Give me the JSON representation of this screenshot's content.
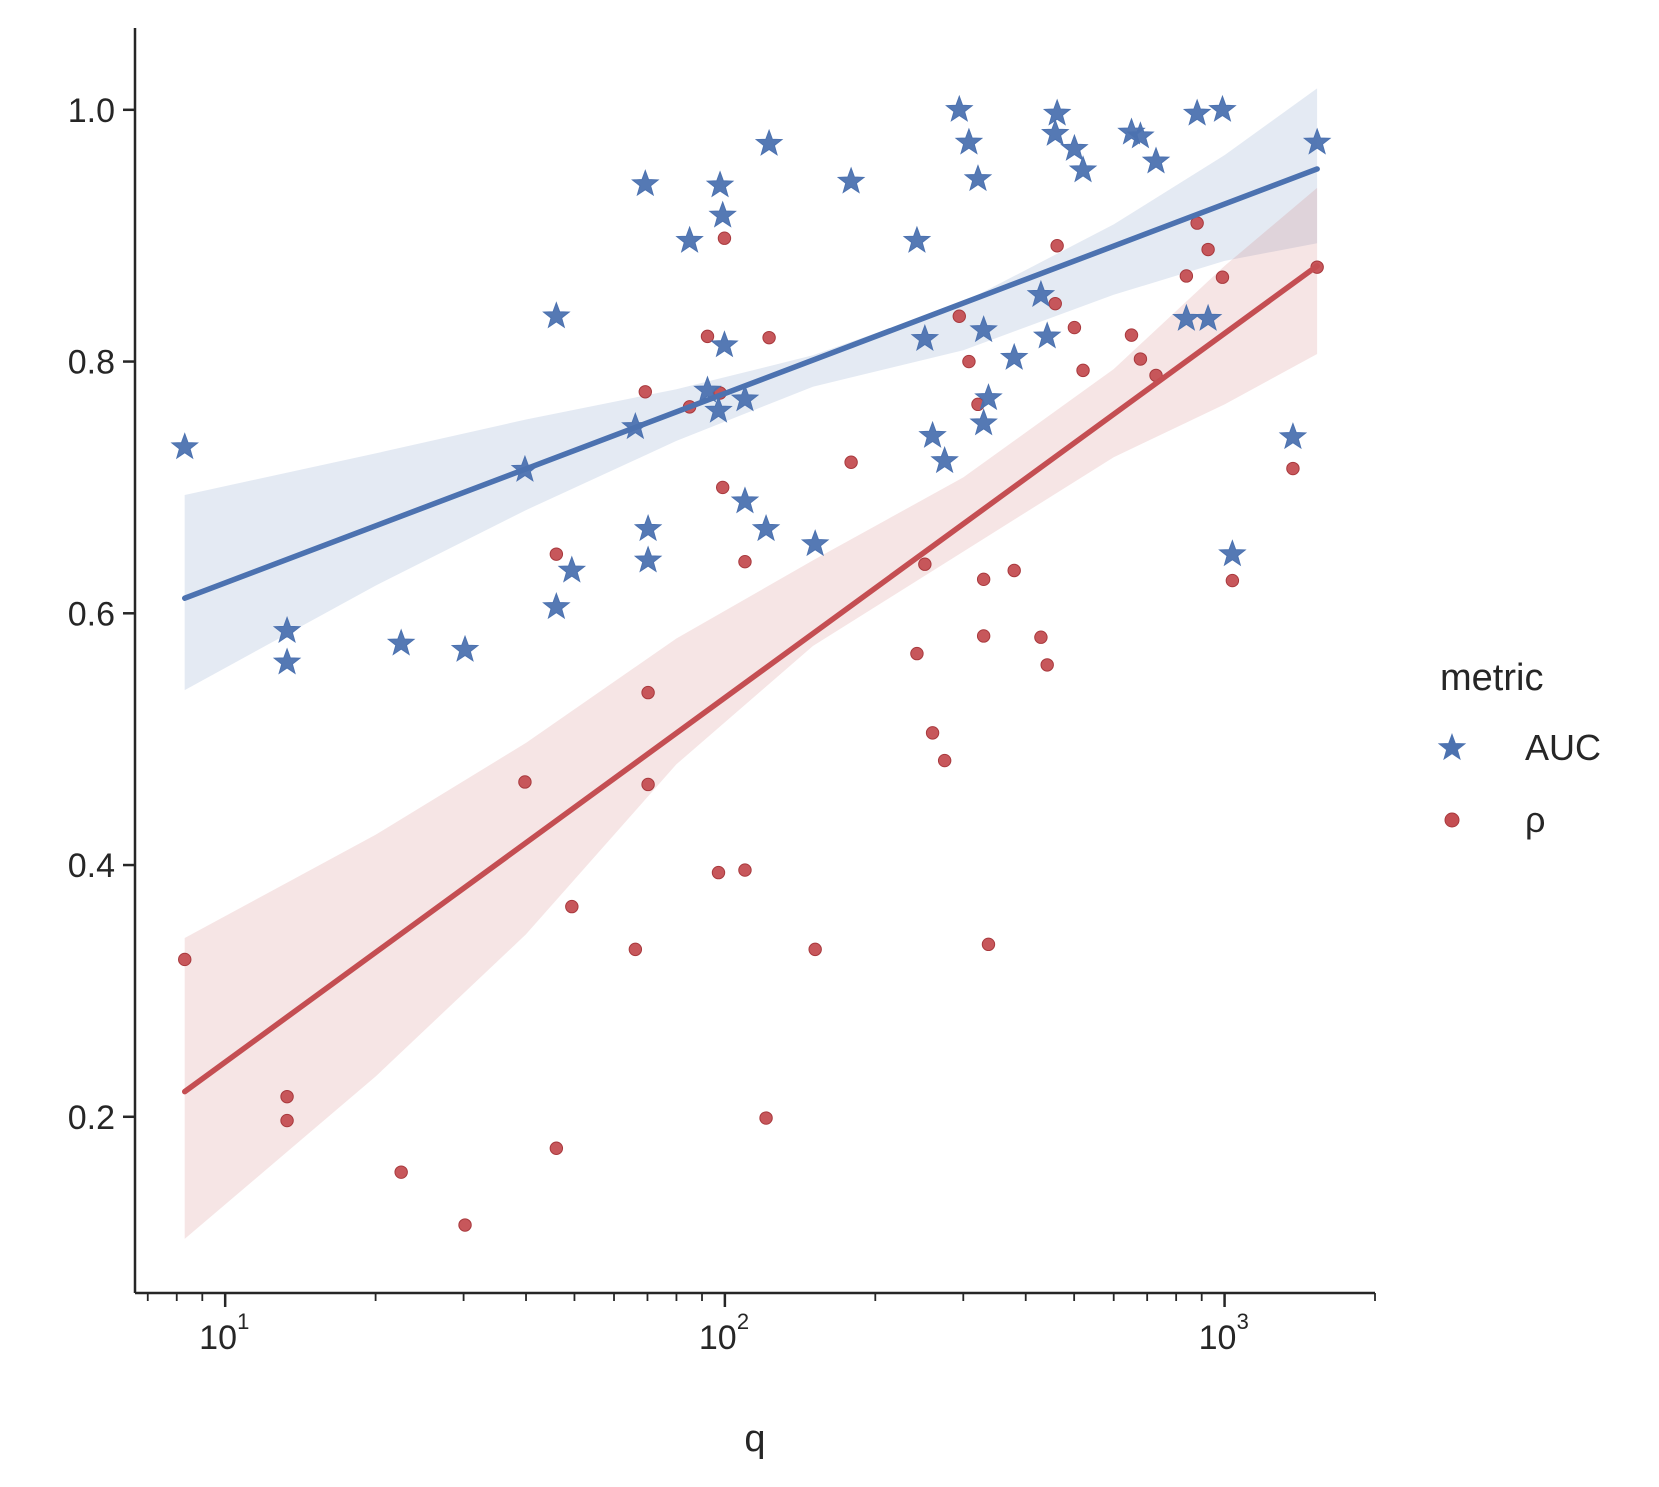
{
  "chart_data": {
    "type": "scatter",
    "title": "",
    "xlabel": "q",
    "ylabel": "",
    "xscale": "log",
    "xlim": [
      6.6,
      2000
    ],
    "ylim": [
      0.06,
      1.065
    ],
    "yticks": [
      {
        "value": 0.2,
        "label": "0.2"
      },
      {
        "value": 0.4,
        "label": "0.4"
      },
      {
        "value": 0.6,
        "label": "0.6"
      },
      {
        "value": 0.8,
        "label": "0.8"
      },
      {
        "value": 1.0,
        "label": "1.0"
      }
    ],
    "xticks": [
      {
        "value": 10,
        "base": "10",
        "exp": "1"
      },
      {
        "value": 100,
        "base": "10",
        "exp": "2"
      },
      {
        "value": 1000,
        "base": "10",
        "exp": "3"
      }
    ],
    "legend": {
      "title": "metric",
      "position": "right"
    },
    "series": [
      {
        "name": "AUC",
        "marker": "star",
        "color": "#4C72B0",
        "points": [
          [
            8.3,
            0.732
          ],
          [
            13.3,
            0.586
          ],
          [
            13.3,
            0.561
          ],
          [
            22.5,
            0.576
          ],
          [
            30.2,
            0.571
          ],
          [
            39.8,
            0.714
          ],
          [
            46.0,
            0.836
          ],
          [
            46.0,
            0.605
          ],
          [
            49.4,
            0.634
          ],
          [
            66.2,
            0.748
          ],
          [
            69.3,
            0.941
          ],
          [
            70.2,
            0.667
          ],
          [
            70.2,
            0.642
          ],
          [
            85.0,
            0.896
          ],
          [
            92.3,
            0.777
          ],
          [
            97.1,
            0.761
          ],
          [
            97.8,
            0.94
          ],
          [
            99.0,
            0.916
          ],
          [
            99.8,
            0.813
          ],
          [
            109.7,
            0.689
          ],
          [
            109.7,
            0.77
          ],
          [
            120.9,
            0.667
          ],
          [
            122.6,
            0.973
          ],
          [
            151.6,
            0.655
          ],
          [
            178.9,
            0.943
          ],
          [
            242.3,
            0.896
          ],
          [
            251.3,
            0.818
          ],
          [
            260.4,
            0.741
          ],
          [
            275.3,
            0.721
          ],
          [
            294.5,
            1.0
          ],
          [
            307.9,
            0.974
          ],
          [
            321.0,
            0.945
          ],
          [
            329.5,
            0.825
          ],
          [
            329.5,
            0.751
          ],
          [
            336.9,
            0.771
          ],
          [
            379.3,
            0.803
          ],
          [
            429.0,
            0.853
          ],
          [
            441.6,
            0.82
          ],
          [
            458.3,
            0.981
          ],
          [
            462.3,
            0.997
          ],
          [
            500.6,
            0.969
          ],
          [
            520.9,
            0.952
          ],
          [
            651.2,
            0.982
          ],
          [
            678.6,
            0.979
          ],
          [
            729.1,
            0.959
          ],
          [
            838.6,
            0.834
          ],
          [
            881.2,
            0.997
          ],
          [
            926.9,
            0.834
          ],
          [
            990.3,
            1.0
          ],
          [
            1036.6,
            0.647
          ],
          [
            1370.2,
            0.74
          ],
          [
            1532.0,
            0.974
          ]
        ],
        "fit": {
          "x": [
            8.3,
            1532.0
          ],
          "y": [
            0.612,
            0.953
          ]
        },
        "ci_upper": [
          [
            8.3,
            0.694
          ],
          [
            20,
            0.727
          ],
          [
            40,
            0.754
          ],
          [
            80,
            0.778
          ],
          [
            150,
            0.805
          ],
          [
            300,
            0.847
          ],
          [
            600,
            0.909
          ],
          [
            1000,
            0.964
          ],
          [
            1532.0,
            1.017
          ]
        ],
        "ci_lower": [
          [
            8.3,
            0.539
          ],
          [
            20,
            0.622
          ],
          [
            40,
            0.682
          ],
          [
            80,
            0.737
          ],
          [
            150,
            0.78
          ],
          [
            300,
            0.809
          ],
          [
            600,
            0.853
          ],
          [
            1000,
            0.88
          ],
          [
            1532.0,
            0.894
          ]
        ]
      },
      {
        "name": "ρ",
        "marker": "circle",
        "color": "#C44E52",
        "points": [
          [
            8.3,
            0.325
          ],
          [
            13.3,
            0.216
          ],
          [
            13.3,
            0.197
          ],
          [
            22.5,
            0.156
          ],
          [
            30.2,
            0.114
          ],
          [
            39.8,
            0.466
          ],
          [
            46.0,
            0.647
          ],
          [
            46.0,
            0.175
          ],
          [
            49.4,
            0.367
          ],
          [
            66.2,
            0.333
          ],
          [
            69.3,
            0.776
          ],
          [
            70.2,
            0.537
          ],
          [
            70.2,
            0.464
          ],
          [
            85.0,
            0.764
          ],
          [
            92.3,
            0.82
          ],
          [
            97.1,
            0.394
          ],
          [
            97.8,
            0.775
          ],
          [
            99.0,
            0.7
          ],
          [
            99.8,
            0.898
          ],
          [
            109.7,
            0.641
          ],
          [
            109.7,
            0.396
          ],
          [
            120.9,
            0.199
          ],
          [
            122.6,
            0.819
          ],
          [
            151.6,
            0.333
          ],
          [
            178.9,
            0.72
          ],
          [
            242.3,
            0.568
          ],
          [
            251.3,
            0.639
          ],
          [
            260.4,
            0.505
          ],
          [
            275.3,
            0.483
          ],
          [
            294.5,
            0.836
          ],
          [
            307.9,
            0.8
          ],
          [
            321.0,
            0.766
          ],
          [
            329.5,
            0.627
          ],
          [
            329.5,
            0.582
          ],
          [
            336.9,
            0.337
          ],
          [
            379.3,
            0.634
          ],
          [
            429.0,
            0.581
          ],
          [
            441.6,
            0.559
          ],
          [
            458.3,
            0.846
          ],
          [
            462.3,
            0.892
          ],
          [
            500.6,
            0.827
          ],
          [
            520.9,
            0.793
          ],
          [
            651.2,
            0.821
          ],
          [
            678.6,
            0.802
          ],
          [
            729.1,
            0.789
          ],
          [
            838.6,
            0.868
          ],
          [
            881.2,
            0.91
          ],
          [
            926.9,
            0.889
          ],
          [
            990.3,
            0.867
          ],
          [
            1036.6,
            0.626
          ],
          [
            1370.2,
            0.715
          ],
          [
            1532.0,
            0.875
          ]
        ],
        "fit": {
          "x": [
            8.3,
            1532.0
          ],
          "y": [
            0.22,
            0.876
          ]
        },
        "ci_upper": [
          [
            8.3,
            0.342
          ],
          [
            20,
            0.424
          ],
          [
            40,
            0.497
          ],
          [
            80,
            0.58
          ],
          [
            150,
            0.642
          ],
          [
            300,
            0.708
          ],
          [
            600,
            0.794
          ],
          [
            1000,
            0.876
          ],
          [
            1532.0,
            0.938
          ]
        ],
        "ci_lower": [
          [
            8.3,
            0.103
          ],
          [
            20,
            0.232
          ],
          [
            40,
            0.345
          ],
          [
            80,
            0.48
          ],
          [
            150,
            0.574
          ],
          [
            300,
            0.649
          ],
          [
            600,
            0.724
          ],
          [
            1000,
            0.766
          ],
          [
            1532.0,
            0.806
          ]
        ]
      }
    ]
  }
}
